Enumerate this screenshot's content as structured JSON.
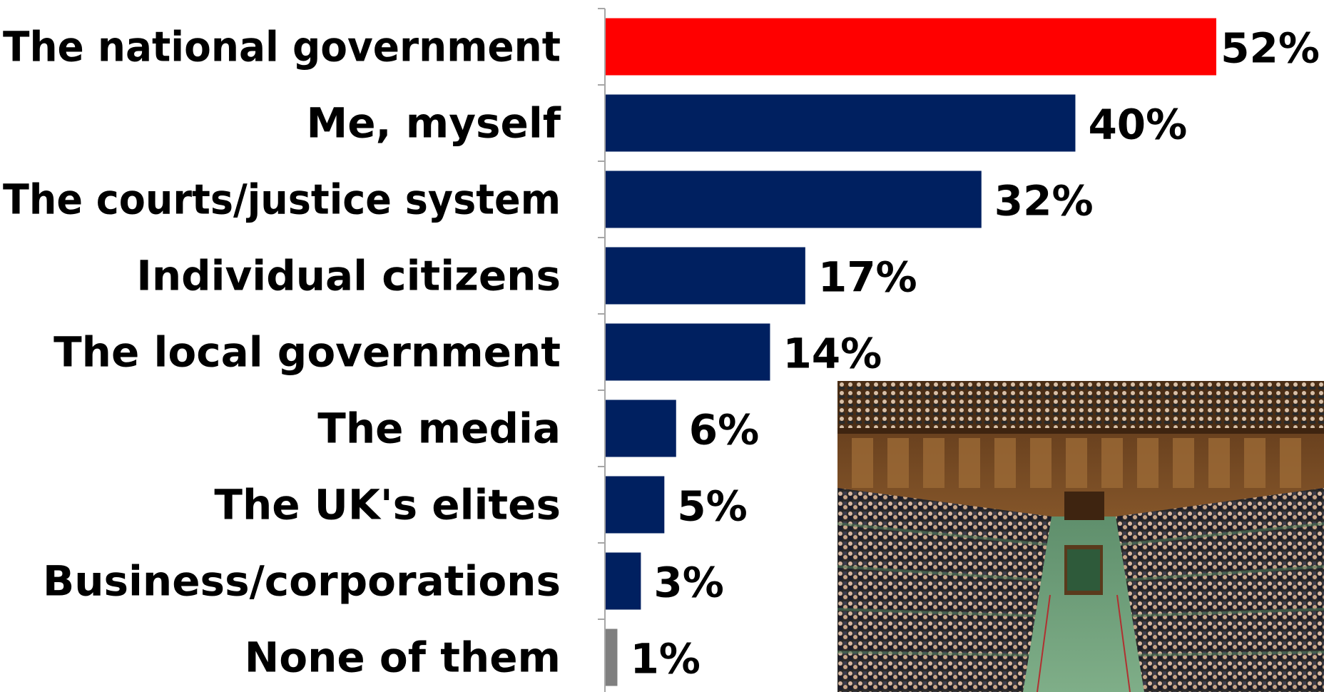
{
  "chart_data": {
    "type": "bar",
    "orientation": "horizontal",
    "categories": [
      "The national government",
      "Me, myself",
      "The courts/justice system",
      "Individual citizens",
      "The local government",
      "The media",
      "The UK's elites",
      "Business/corporations",
      "None of them"
    ],
    "values": [
      52,
      40,
      32,
      17,
      14,
      6,
      5,
      3,
      1
    ],
    "value_labels": [
      "52%",
      "40%",
      "32%",
      "17%",
      "14%",
      "6%",
      "5%",
      "3%",
      "1%"
    ],
    "bar_colors": [
      "#ff0000",
      "#002060",
      "#002060",
      "#002060",
      "#002060",
      "#002060",
      "#002060",
      "#002060",
      "#7f7f7f"
    ],
    "title": "",
    "xlabel": "",
    "ylabel": "",
    "xlim": [
      0,
      52
    ],
    "grid": false,
    "legend": "none"
  },
  "photo": {
    "icon": "parliament-chamber-photo",
    "colors": {
      "wood": "#7a4a22",
      "dark_wood": "#3e2410",
      "bench_green": "#4f7d5a",
      "floor_green": "#6fa07b"
    }
  }
}
